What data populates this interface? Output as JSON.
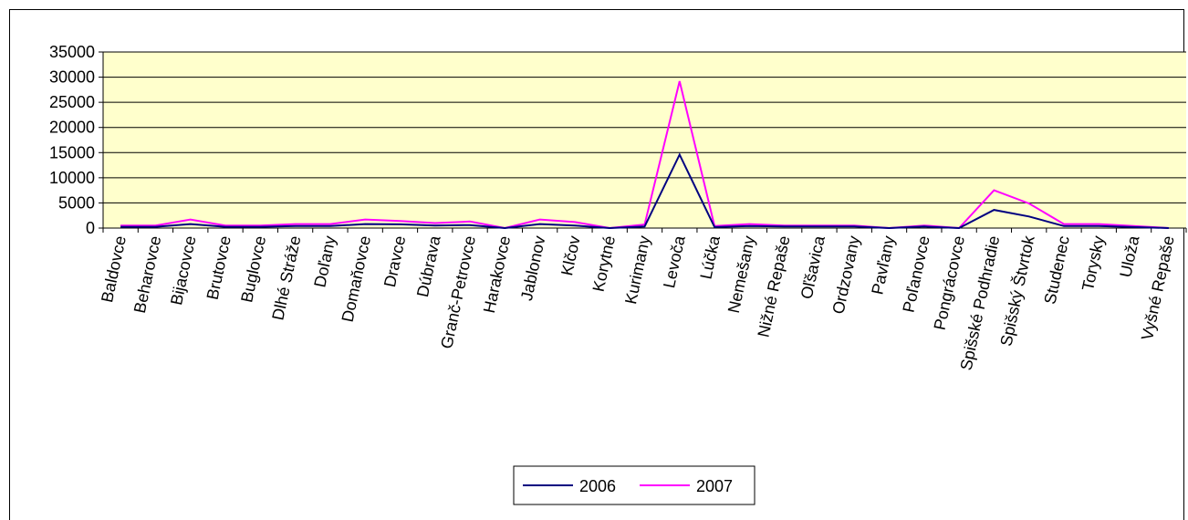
{
  "chart_data": {
    "type": "line",
    "title": "",
    "xlabel": "",
    "ylabel": "",
    "ylim": [
      0,
      35000
    ],
    "yticks": [
      0,
      5000,
      10000,
      15000,
      20000,
      25000,
      30000,
      35000
    ],
    "grid": true,
    "plot_background": "#FFFFCC",
    "legend_position": "bottom",
    "categories": [
      "Baldovce",
      "Beharovce",
      "Bijacovce",
      "Brutovce",
      "Buglovce",
      "Dlhé Stráže",
      "Doľany",
      "Domaňovce",
      "Dravce",
      "Dúbrava",
      "Granč-Petrovce",
      "Harakovce",
      "Jablonov",
      "Klčov",
      "Korytné",
      "Kurimany",
      "Levoča",
      "Lúčka",
      "Nemešany",
      "Nižné Repaše",
      "Oľšavica",
      "Ordzovany",
      "Pavľany",
      "Poľanovce",
      "Pongrácovce",
      "Spišské Podhradie",
      "Spišský Štvrtok",
      "Studenec",
      "Torysky",
      "Uloža",
      "Vyšné Repaše"
    ],
    "series": [
      {
        "name": "2006",
        "color": "#000080",
        "values": [
          250,
          250,
          800,
          250,
          250,
          400,
          400,
          800,
          750,
          500,
          600,
          0,
          800,
          500,
          0,
          300,
          14600,
          200,
          400,
          300,
          300,
          300,
          0,
          300,
          0,
          3600,
          2300,
          400,
          400,
          200,
          0
        ]
      },
      {
        "name": "2007",
        "color": "#FF00FF",
        "values": [
          500,
          500,
          1700,
          500,
          500,
          800,
          800,
          1700,
          1400,
          1000,
          1300,
          0,
          1700,
          1200,
          0,
          700,
          29200,
          400,
          800,
          500,
          500,
          500,
          0,
          500,
          0,
          7500,
          4900,
          800,
          800,
          400,
          0
        ]
      }
    ]
  }
}
